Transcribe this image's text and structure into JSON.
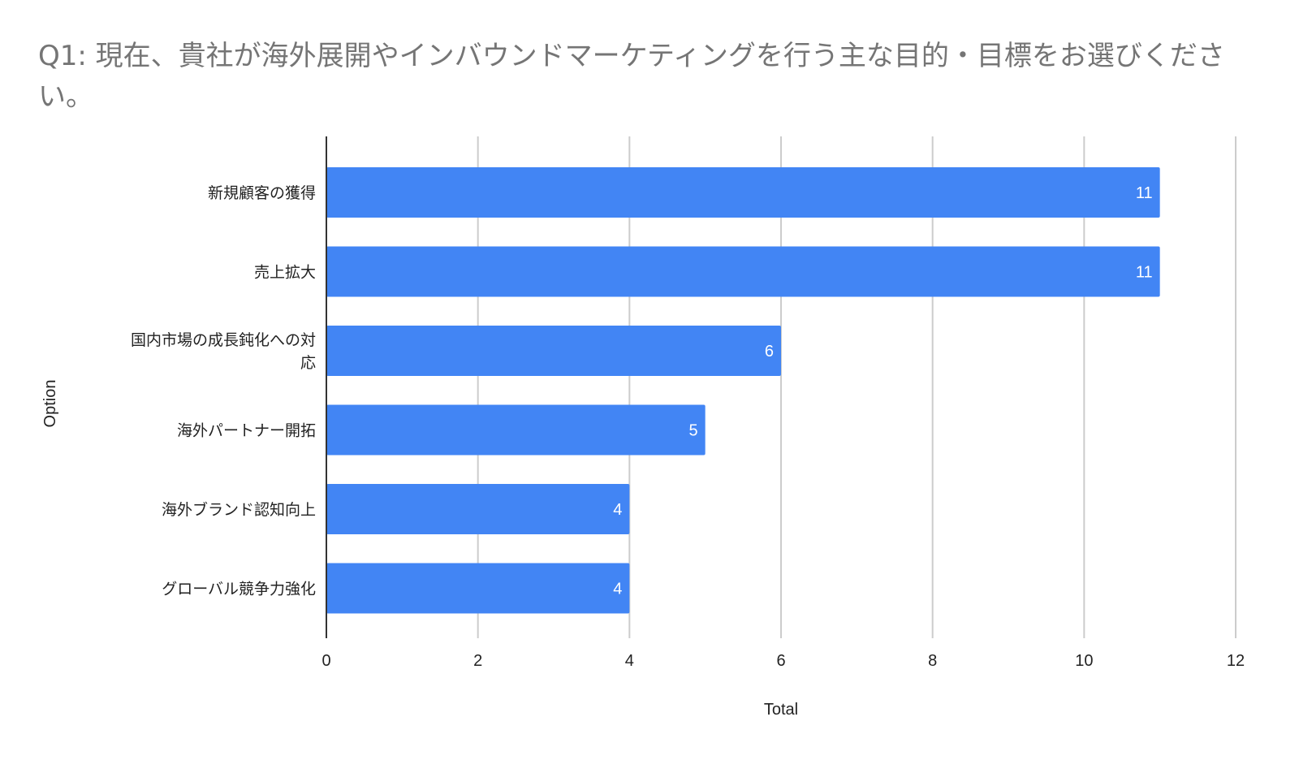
{
  "chart_data": {
    "type": "bar",
    "orientation": "horizontal",
    "title": "Q1: 現在、貴社が海外展開やインバウンドマーケティングを行う主な目的・目標をお選びください。",
    "xlabel": "Total",
    "ylabel": "Option",
    "categories": [
      [
        "新規顧客の獲得"
      ],
      [
        "売上拡大"
      ],
      [
        "国内市場の成長鈍化への対",
        "応"
      ],
      [
        "海外パートナー開拓"
      ],
      [
        "海外ブランド認知向上"
      ],
      [
        "グローバル競争力強化"
      ]
    ],
    "values": [
      11,
      11,
      6,
      5,
      4,
      4
    ],
    "xlim": [
      0,
      12
    ],
    "xticks": [
      "0",
      "2",
      "4",
      "6",
      "8",
      "10",
      "12"
    ],
    "grid": "vertical",
    "legend": "none",
    "bar_color": "#4285f4",
    "gridline_color": "#cccccc",
    "axis_color": "#333333"
  }
}
